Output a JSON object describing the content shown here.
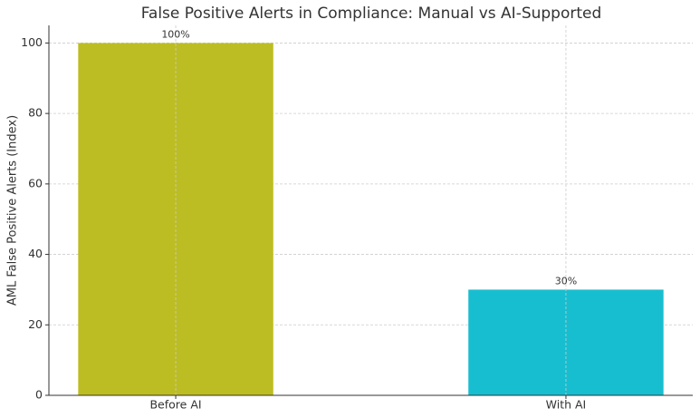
{
  "chart_data": {
    "type": "bar",
    "title": "False Positive Alerts in Compliance: Manual vs AI-Supported",
    "y_label": "AML False Positive Alerts (Index)",
    "categories": [
      "Before AI",
      "With AI"
    ],
    "values": [
      100,
      30
    ],
    "value_labels": [
      "100%",
      "30%"
    ],
    "colors": [
      "#bcbd22",
      "#17becf"
    ],
    "ylim": [
      0,
      105
    ],
    "yticks": [
      0,
      20,
      40,
      60,
      80,
      100
    ],
    "grid": true
  }
}
